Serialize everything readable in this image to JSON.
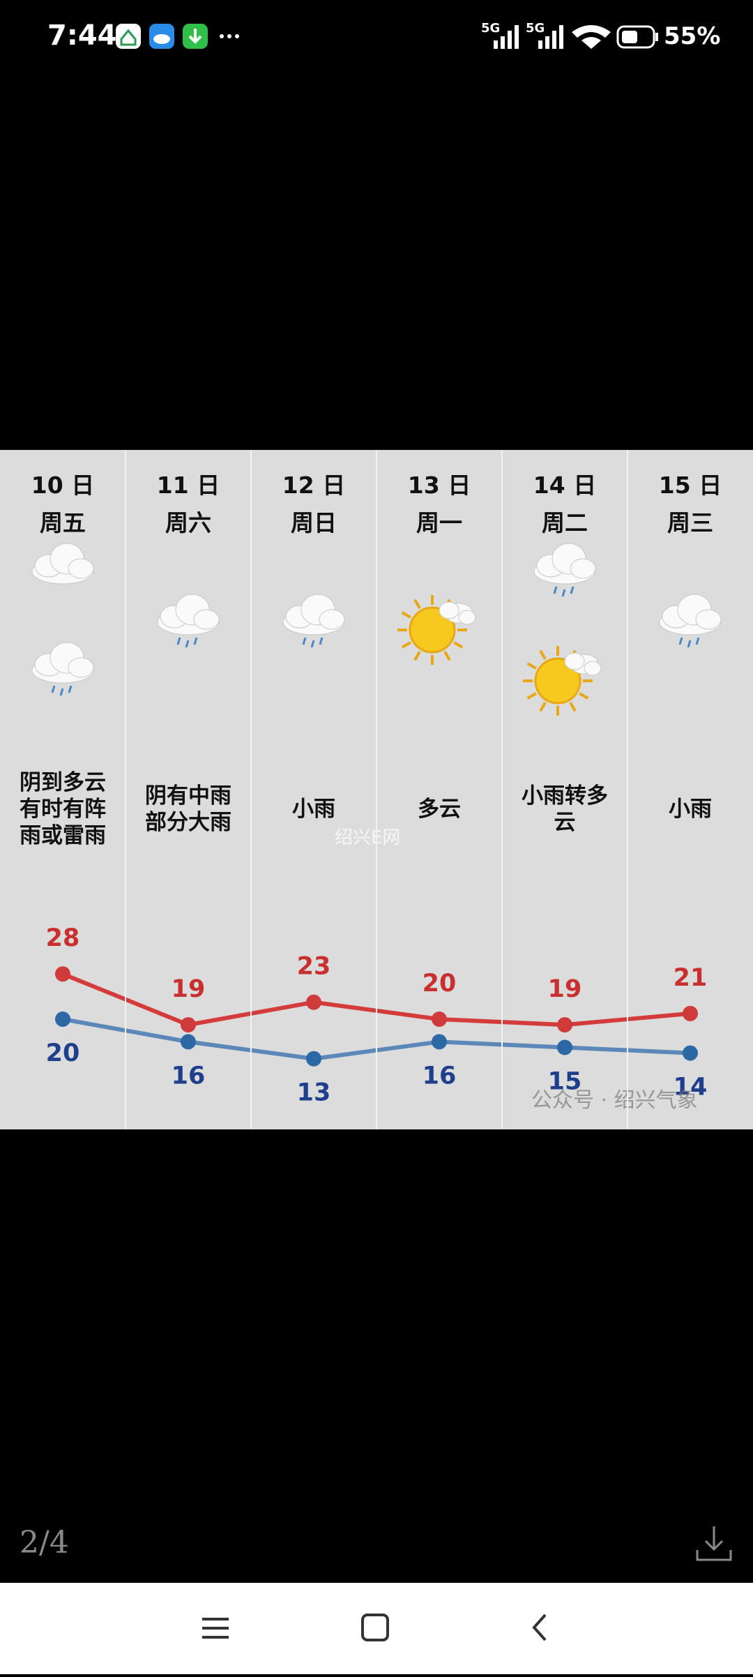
{
  "status_bar": {
    "time": "7:44",
    "network_1": "5G",
    "network_2": "5G",
    "battery": "55%"
  },
  "forecast": {
    "days": [
      {
        "date": "10 日",
        "weekday": "周五",
        "description": "阴到多云有时有阵雨或雷雨",
        "high": 28,
        "low": 20
      },
      {
        "date": "11 日",
        "weekday": "周六",
        "description": "阴有中雨部分大雨",
        "high": 19,
        "low": 16
      },
      {
        "date": "12 日",
        "weekday": "周日",
        "description": "小雨",
        "high": 23,
        "low": 13
      },
      {
        "date": "13 日",
        "weekday": "周一",
        "description": "多云",
        "high": 20,
        "low": 16
      },
      {
        "date": "14 日",
        "weekday": "周二",
        "description": "小雨转多云",
        "high": 19,
        "low": 15
      },
      {
        "date": "15 日",
        "weekday": "周三",
        "description": "小雨",
        "high": 21,
        "low": 14
      }
    ],
    "watermark_center": "绍兴E网",
    "watermark_corner": "公众号 · 绍兴气象"
  },
  "viewer": {
    "counter": "2/4"
  }
}
